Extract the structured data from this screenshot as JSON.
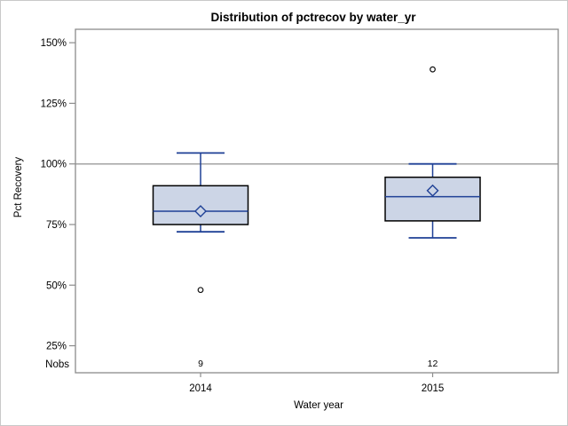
{
  "window": {
    "background": "#ffffff",
    "border_color": "#c9c9c9"
  },
  "chart_data": {
    "type": "boxplot",
    "title": "Distribution of pctrecov by water_yr",
    "xlabel": "Water year",
    "ylabel": "Pct Recovery",
    "nobs_label": "Nobs",
    "categories": [
      "2014",
      "2015"
    ],
    "ytick_values": [
      150,
      125,
      100,
      75,
      50,
      25
    ],
    "ytick_labels": [
      "150%",
      "125%",
      "100%",
      "75%",
      "50%",
      "25%"
    ],
    "reference_line": 100,
    "ylim": [
      14,
      155
    ],
    "grid": false,
    "legend": "none",
    "series": [
      {
        "category": "2014",
        "n": 9,
        "whisker_low": 72,
        "q1": 75,
        "median": 80.5,
        "q3": 91,
        "whisker_high": 104.5,
        "mean": 80.5,
        "outliers": [
          48
        ]
      },
      {
        "category": "2015",
        "n": 12,
        "whisker_low": 69.5,
        "q1": 76.5,
        "median": 86.5,
        "q3": 94.5,
        "whisker_high": 100,
        "mean": 89,
        "outliers": [
          139
        ]
      }
    ],
    "colors": {
      "line": "#1f4096",
      "box_fill": "#ccd5e6",
      "box_stroke": "#000000",
      "outlier": "#111111",
      "frame": "#8c8c8c",
      "reference_line": "#a3a3a3",
      "text": "#000000"
    }
  }
}
